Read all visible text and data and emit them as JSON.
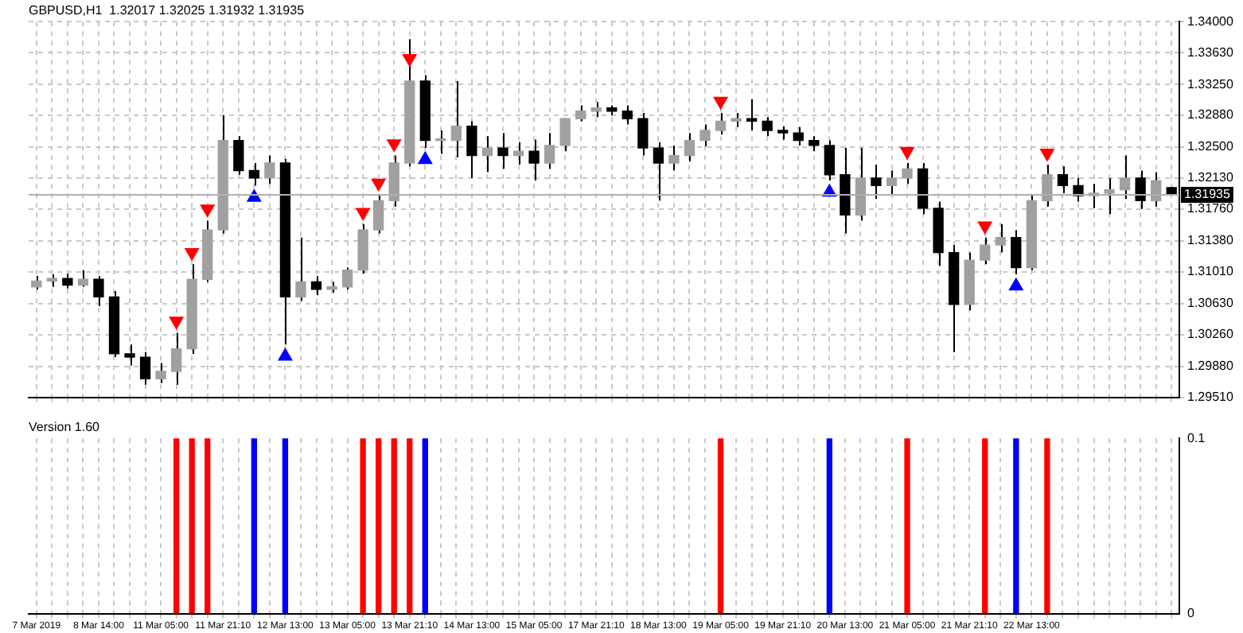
{
  "chart_data": [
    {
      "type": "candlestick",
      "title": "GBPUSD,H1  1.32017 1.32025 1.31932 1.31935",
      "color": "#000000",
      "grid": true,
      "colors": [
        "#a0a0a0",
        "#a0a0a0",
        "#000000",
        "#a0a0a0",
        "#000000",
        "#000000",
        "#000000",
        "#000000",
        "#a0a0a0",
        "#a0a0a0",
        "#a0a0a0",
        "#a0a0a0",
        "#a0a0a0",
        "#000000",
        "#000000",
        "#a0a0a0",
        "#000000",
        "#a0a0a0",
        "#000000",
        "#a0a0a0",
        "#a0a0a0",
        "#a0a0a0",
        "#a0a0a0",
        "#a0a0a0",
        "#a0a0a0",
        "#000000",
        "#a0a0a0",
        "#a0a0a0",
        "#000000",
        "#a0a0a0",
        "#000000",
        "#a0a0a0",
        "#000000",
        "#a0a0a0",
        "#a0a0a0",
        "#a0a0a0",
        "#a0a0a0",
        "#000000",
        "#000000",
        "#000000",
        "#000000",
        "#a0a0a0",
        "#a0a0a0",
        "#a0a0a0",
        "#a0a0a0",
        "#a0a0a0",
        "#000000",
        "#000000",
        "#000000",
        "#000000",
        "#000000",
        "#000000",
        "#000000",
        "#a0a0a0",
        "#000000",
        "#a0a0a0",
        "#a0a0a0",
        "#000000",
        "#000000",
        "#000000",
        "#a0a0a0",
        "#a0a0a0",
        "#a0a0a0",
        "#000000",
        "#a0a0a0",
        "#a0a0a0",
        "#000000",
        "#000000",
        "#a0a0a0",
        "#a0a0a0",
        "#a0a0a0",
        "#000000",
        "#a0a0a0",
        "#000000"
      ],
      "categories": [
        null,
        null,
        null,
        null,
        null,
        null,
        null,
        null,
        null,
        null,
        null,
        null,
        null,
        null,
        null,
        null,
        null,
        null,
        null,
        null,
        null,
        null,
        null,
        null,
        null,
        null,
        null,
        null,
        null,
        null,
        null,
        null,
        null,
        null,
        null,
        null,
        null,
        null,
        null,
        null,
        null,
        null,
        null,
        null,
        null,
        null,
        null,
        null,
        null,
        null,
        null,
        null,
        null,
        null,
        null,
        null,
        null,
        null,
        null,
        null,
        null,
        null,
        null,
        null,
        null,
        null,
        null,
        null,
        null,
        null,
        null,
        null,
        null,
        null
      ],
      "ohlc": [
        [
          1.3083,
          1.3096,
          1.308,
          1.309
        ],
        [
          1.309,
          1.3098,
          1.3083,
          1.3093
        ],
        [
          1.3093,
          1.3099,
          1.3081,
          1.3085
        ],
        [
          1.3085,
          1.3103,
          1.3083,
          1.3092
        ],
        [
          1.3092,
          1.3096,
          1.306,
          1.3071
        ],
        [
          1.3071,
          1.3078,
          1.2999,
          1.3003
        ],
        [
          1.3003,
          1.3014,
          1.2989,
          1.2999
        ],
        [
          1.2999,
          1.3005,
          1.2966,
          1.2973
        ],
        [
          1.2973,
          1.2992,
          1.2968,
          1.2982
        ],
        [
          1.2982,
          1.3028,
          1.2966,
          1.3009
        ],
        [
          1.3009,
          1.311,
          1.3003,
          1.3092
        ],
        [
          1.3092,
          1.3162,
          1.3089,
          1.3151
        ],
        [
          1.3151,
          1.3288,
          1.3147,
          1.3258
        ],
        [
          1.3258,
          1.3263,
          1.3217,
          1.3222
        ],
        [
          1.3222,
          1.3231,
          1.3204,
          1.3213
        ],
        [
          1.3213,
          1.324,
          1.3206,
          1.3231
        ],
        [
          1.3231,
          1.3236,
          1.3014,
          1.3071
        ],
        [
          1.3071,
          1.3142,
          1.3066,
          1.3089
        ],
        [
          1.3089,
          1.3096,
          1.3073,
          1.308
        ],
        [
          1.308,
          1.3089,
          1.3076,
          1.3083
        ],
        [
          1.3083,
          1.3106,
          1.308,
          1.3103
        ],
        [
          1.3103,
          1.3158,
          1.3099,
          1.3151
        ],
        [
          1.3151,
          1.3193,
          1.3147,
          1.3186
        ],
        [
          1.3186,
          1.324,
          1.3179,
          1.3231
        ],
        [
          1.3231,
          1.3379,
          1.3227,
          1.3329
        ],
        [
          1.3329,
          1.3336,
          1.3249,
          1.3258
        ],
        [
          1.3258,
          1.327,
          1.3242,
          1.3258
        ],
        [
          1.3258,
          1.3329,
          1.3238,
          1.3275
        ],
        [
          1.3275,
          1.3281,
          1.3213,
          1.324
        ],
        [
          1.324,
          1.3263,
          1.322,
          1.3249
        ],
        [
          1.3249,
          1.3267,
          1.3224,
          1.324
        ],
        [
          1.324,
          1.3256,
          1.3229,
          1.3245
        ],
        [
          1.3245,
          1.3259,
          1.321,
          1.3231
        ],
        [
          1.3231,
          1.3267,
          1.3224,
          1.3252
        ],
        [
          1.3252,
          1.3284,
          1.3245,
          1.3284
        ],
        [
          1.3284,
          1.33,
          1.3281,
          1.3293
        ],
        [
          1.3293,
          1.3304,
          1.3286,
          1.3297
        ],
        [
          1.3297,
          1.33,
          1.3288,
          1.3293
        ],
        [
          1.3293,
          1.33,
          1.3277,
          1.3284
        ],
        [
          1.3284,
          1.3291,
          1.324,
          1.3249
        ],
        [
          1.3249,
          1.3256,
          1.3186,
          1.3231
        ],
        [
          1.3231,
          1.3252,
          1.3222,
          1.324
        ],
        [
          1.324,
          1.3267,
          1.3233,
          1.3258
        ],
        [
          1.3258,
          1.3277,
          1.3251,
          1.327
        ],
        [
          1.327,
          1.3291,
          1.3265,
          1.3281
        ],
        [
          1.3281,
          1.3291,
          1.3274,
          1.3284
        ],
        [
          1.3284,
          1.3307,
          1.327,
          1.3281
        ],
        [
          1.3281,
          1.3286,
          1.3263,
          1.327
        ],
        [
          1.327,
          1.3275,
          1.3259,
          1.3267
        ],
        [
          1.3267,
          1.3274,
          1.3252,
          1.3258
        ],
        [
          1.3258,
          1.3263,
          1.3245,
          1.3252
        ],
        [
          1.3252,
          1.3258,
          1.321,
          1.3217
        ],
        [
          1.3217,
          1.3249,
          1.3147,
          1.3169
        ],
        [
          1.3169,
          1.3249,
          1.3162,
          1.3213
        ],
        [
          1.3213,
          1.3229,
          1.3188,
          1.3204
        ],
        [
          1.3204,
          1.3222,
          1.3192,
          1.3213
        ],
        [
          1.3213,
          1.3231,
          1.3206,
          1.3224
        ],
        [
          1.3224,
          1.3231,
          1.317,
          1.3177
        ],
        [
          1.3177,
          1.3185,
          1.3108,
          1.3124
        ],
        [
          1.3124,
          1.3133,
          1.3005,
          1.3062
        ],
        [
          1.3062,
          1.3124,
          1.3055,
          1.3115
        ],
        [
          1.3115,
          1.3142,
          1.311,
          1.3133
        ],
        [
          1.3133,
          1.3158,
          1.3124,
          1.3142
        ],
        [
          1.3142,
          1.3151,
          1.3098,
          1.3106
        ],
        [
          1.3106,
          1.3192,
          1.3103,
          1.3186
        ],
        [
          1.3186,
          1.3229,
          1.3179,
          1.3217
        ],
        [
          1.3217,
          1.3227,
          1.3195,
          1.3204
        ],
        [
          1.3204,
          1.3213,
          1.3185,
          1.3192
        ],
        [
          1.3192,
          1.3206,
          1.3177,
          1.3195
        ],
        [
          1.3195,
          1.3213,
          1.317,
          1.3199
        ],
        [
          1.3199,
          1.324,
          1.3188,
          1.3213
        ],
        [
          1.3213,
          1.3222,
          1.3176,
          1.3186
        ],
        [
          1.3186,
          1.322,
          1.3179,
          1.321
        ],
        [
          1.32017,
          1.32025,
          1.31932,
          1.31935
        ]
      ],
      "series": [
        {
          "type": "scatter",
          "color": "#ff0000",
          "marker": "triangle",
          "values": [
            null,
            null,
            null,
            null,
            null,
            null,
            null,
            null,
            null,
            1.3042,
            1.3124,
            1.3176,
            null,
            null,
            null,
            null,
            null,
            null,
            null,
            null,
            null,
            1.3172,
            1.3207,
            1.3254,
            1.3356,
            null,
            null,
            null,
            null,
            null,
            null,
            null,
            null,
            null,
            null,
            null,
            null,
            null,
            null,
            null,
            null,
            null,
            null,
            null,
            1.3305,
            null,
            null,
            null,
            null,
            null,
            null,
            null,
            null,
            null,
            null,
            null,
            1.3245,
            null,
            null,
            null,
            null,
            1.3156,
            null,
            null,
            null,
            1.3243,
            null,
            null,
            null,
            null,
            null,
            null,
            null,
            null
          ]
        },
        {
          "type": "scatter",
          "color": "#0000ff",
          "marker": "triangle",
          "values": [
            null,
            null,
            null,
            null,
            null,
            null,
            null,
            null,
            null,
            null,
            null,
            null,
            null,
            null,
            1.319,
            null,
            1.3,
            null,
            null,
            null,
            null,
            null,
            null,
            null,
            null,
            1.3235,
            null,
            null,
            null,
            null,
            null,
            null,
            null,
            null,
            null,
            null,
            null,
            null,
            null,
            null,
            null,
            null,
            null,
            null,
            null,
            null,
            null,
            null,
            null,
            null,
            null,
            1.3196,
            null,
            null,
            null,
            null,
            null,
            null,
            null,
            null,
            null,
            null,
            null,
            1.3084,
            null,
            null,
            null,
            null,
            null,
            null,
            null,
            null,
            null,
            null
          ]
        }
      ],
      "ylim": [
        1.2951,
        1.34
      ],
      "yticks": [
        {
          "value": 1.2951,
          "label": "1.29510"
        },
        {
          "value": 1.2988,
          "label": "1.29880"
        },
        {
          "value": 1.3026,
          "label": "1.30260"
        },
        {
          "value": 1.3063,
          "label": "1.30630"
        },
        {
          "value": 1.3101,
          "label": "1.31010"
        },
        {
          "value": 1.3138,
          "label": "1.31380"
        },
        {
          "value": 1.3176,
          "label": "1.31760"
        },
        {
          "value": 1.3213,
          "label": "1.32130"
        },
        {
          "value": 1.325,
          "label": "1.32500"
        },
        {
          "value": 1.3288,
          "label": "1.32880"
        },
        {
          "value": 1.3325,
          "label": "1.33250"
        },
        {
          "value": 1.3363,
          "label": "1.33630"
        },
        {
          "value": 1.34,
          "label": "1.34000"
        }
      ],
      "ref_lines": [
        {
          "axis": "y",
          "value": 1.31935,
          "label": "1.31935"
        }
      ]
    },
    {
      "type": "bar",
      "title": "Version 1.60",
      "grid": "x",
      "categories": [
        "7 Mar 2019",
        null,
        null,
        null,
        "8 Mar 14:00",
        null,
        null,
        null,
        "11 Mar 05:00",
        null,
        null,
        null,
        "11 Mar 21:10",
        null,
        null,
        null,
        "12 Mar 13:00",
        null,
        null,
        null,
        "13 Mar 05:00",
        null,
        null,
        null,
        "13 Mar 21:10",
        null,
        null,
        null,
        "14 Mar 13:00",
        null,
        null,
        null,
        "15 Mar 05:00",
        null,
        null,
        null,
        "17 Mar 21:10",
        null,
        null,
        null,
        "18 Mar 13:00",
        null,
        null,
        null,
        "19 Mar 05:00",
        null,
        null,
        null,
        "19 Mar 21:10",
        null,
        null,
        null,
        "20 Mar 13:00",
        null,
        null,
        null,
        "21 Mar 05:00",
        null,
        null,
        null,
        "21 Mar 21:10",
        null,
        null,
        null,
        "22 Mar 13:00",
        null,
        null,
        null,
        null,
        null,
        null,
        null,
        null,
        null
      ],
      "series": [
        {
          "color": "#ff0000",
          "values": [
            null,
            null,
            null,
            null,
            null,
            null,
            null,
            null,
            null,
            0.1,
            0.1,
            0.1,
            null,
            null,
            null,
            null,
            null,
            null,
            null,
            null,
            null,
            0.1,
            0.1,
            0.1,
            0.1,
            null,
            null,
            null,
            null,
            null,
            null,
            null,
            null,
            null,
            null,
            null,
            null,
            null,
            null,
            null,
            null,
            null,
            null,
            null,
            0.1,
            null,
            null,
            null,
            null,
            null,
            null,
            null,
            null,
            null,
            null,
            null,
            0.1,
            null,
            null,
            null,
            null,
            0.1,
            null,
            null,
            null,
            0.1,
            null,
            null,
            null,
            null,
            null,
            null,
            null,
            null
          ]
        },
        {
          "color": "#0000ff",
          "values": [
            null,
            null,
            null,
            null,
            null,
            null,
            null,
            null,
            null,
            null,
            null,
            null,
            null,
            null,
            0.1,
            null,
            0.1,
            null,
            null,
            null,
            null,
            null,
            null,
            null,
            null,
            0.1,
            null,
            null,
            null,
            null,
            null,
            null,
            null,
            null,
            null,
            null,
            null,
            null,
            null,
            null,
            null,
            null,
            null,
            null,
            null,
            null,
            null,
            null,
            null,
            null,
            null,
            0.1,
            null,
            null,
            null,
            null,
            null,
            null,
            null,
            null,
            null,
            null,
            null,
            0.1,
            null,
            null,
            null,
            null,
            null,
            null,
            null,
            null,
            null,
            null
          ]
        }
      ],
      "ylim": [
        0,
        0.1
      ],
      "yticks": [
        0,
        0.1
      ]
    }
  ]
}
